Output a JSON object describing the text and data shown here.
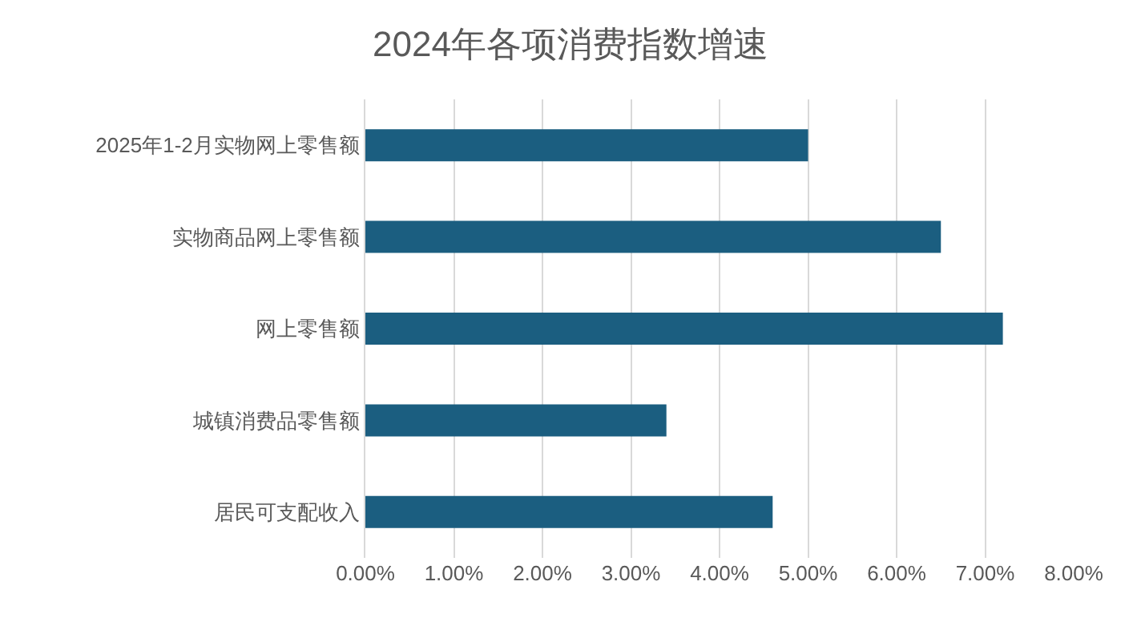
{
  "chart_data": {
    "type": "bar",
    "orientation": "horizontal",
    "title": "2024年各项消费指数增速",
    "categories": [
      "2025年1-2月实物网上零售额",
      "实物商品网上零售额",
      "网上零售额",
      "城镇消费品零售额",
      "居民可支配收入"
    ],
    "values": [
      5.0,
      6.5,
      7.2,
      3.4,
      4.6
    ],
    "color": "#1b5e80",
    "xlim": [
      0,
      8
    ],
    "xticks": [
      {
        "value": 0,
        "label": "0.00%"
      },
      {
        "value": 1,
        "label": "1.00%"
      },
      {
        "value": 2,
        "label": "2.00%"
      },
      {
        "value": 3,
        "label": "3.00%"
      },
      {
        "value": 4,
        "label": "4.00%"
      },
      {
        "value": 5,
        "label": "5.00%"
      },
      {
        "value": 6,
        "label": "6.00%"
      },
      {
        "value": 7,
        "label": "7.00%"
      },
      {
        "value": 8,
        "label": "8.00%"
      }
    ],
    "grid": "x"
  }
}
